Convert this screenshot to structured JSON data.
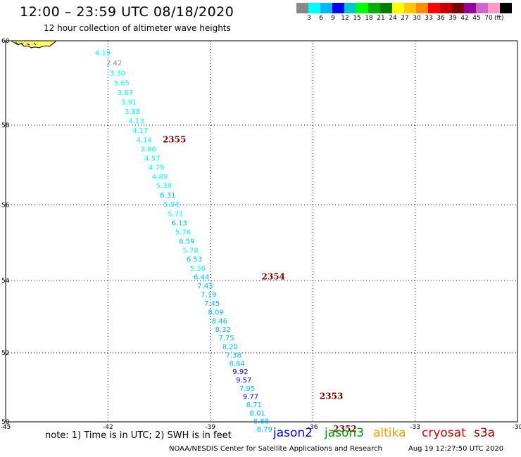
{
  "header": {
    "title": "12:00 – 23:59 UTC 08/18/2020",
    "subtitle": "12 hour collection of altimeter wave heights"
  },
  "scale": {
    "colors": [
      "#888888",
      "#00ffff",
      "#00b7ff",
      "#0000ff",
      "#00c8c8",
      "#00ff00",
      "#00b200",
      "#007d00",
      "#ffff00",
      "#ffc800",
      "#ff8c00",
      "#ff0000",
      "#c80000",
      "#7d0000",
      "#990099",
      "#cc66cc",
      "#ff99cc",
      "#000000"
    ],
    "labels": [
      "3",
      "6",
      "9",
      "12",
      "15",
      "18",
      "21",
      "24",
      "27",
      "30",
      "33",
      "36",
      "39",
      "42",
      "45",
      "70"
    ],
    "unit": "(ft)"
  },
  "map": {
    "lon_ticks": [
      "-45",
      "-42",
      "-39",
      "-36",
      "-33",
      "-30"
    ],
    "lat_ticks": [
      "60",
      "58",
      "56",
      "54",
      "52",
      "50"
    ]
  },
  "chart_data": {
    "type": "scatter",
    "xlabel": "",
    "ylabel": "",
    "xlim": [
      -45,
      -30
    ],
    "ylim": [
      50,
      60
    ],
    "grid": true,
    "points": [
      {
        "lon": -42.38,
        "lat": 59.67,
        "label": "4.19"
      },
      {
        "lon": -42.05,
        "lat": 59.43,
        "label": "2.42"
      },
      {
        "lon": -41.95,
        "lat": 59.19,
        "label": "3.30"
      },
      {
        "lon": -41.83,
        "lat": 58.96,
        "label": "3.65"
      },
      {
        "lon": -41.72,
        "lat": 58.73,
        "label": "3.67"
      },
      {
        "lon": -41.61,
        "lat": 58.5,
        "label": "3.91"
      },
      {
        "lon": -41.51,
        "lat": 58.27,
        "label": "3.88"
      },
      {
        "lon": -41.4,
        "lat": 58.04,
        "label": "4.13"
      },
      {
        "lon": -41.28,
        "lat": 57.81,
        "label": "4.17"
      },
      {
        "lon": -41.17,
        "lat": 57.58,
        "label": "4.14"
      },
      {
        "lon": -41.05,
        "lat": 57.35,
        "label": "3.98"
      },
      {
        "lon": -40.93,
        "lat": 57.12,
        "label": "4.57"
      },
      {
        "lon": -40.81,
        "lat": 56.89,
        "label": "4.79"
      },
      {
        "lon": -40.71,
        "lat": 56.66,
        "label": "4.89"
      },
      {
        "lon": -40.59,
        "lat": 56.43,
        "label": "5.38"
      },
      {
        "lon": -40.48,
        "lat": 56.19,
        "label": "6.31"
      },
      {
        "lon": -40.37,
        "lat": 55.95,
        "label": "5.94"
      },
      {
        "lon": -40.25,
        "lat": 55.71,
        "label": "5.71"
      },
      {
        "lon": -40.14,
        "lat": 55.47,
        "label": "6.13"
      },
      {
        "lon": -40.03,
        "lat": 55.23,
        "label": "5.76"
      },
      {
        "lon": -39.92,
        "lat": 54.99,
        "label": "6.59"
      },
      {
        "lon": -39.81,
        "lat": 54.75,
        "label": "5.78"
      },
      {
        "lon": -39.7,
        "lat": 54.51,
        "label": "6.53"
      },
      {
        "lon": -39.6,
        "lat": 54.27,
        "label": "5.36"
      },
      {
        "lon": -39.49,
        "lat": 54.03,
        "label": "6.44"
      },
      {
        "lon": -39.38,
        "lat": 53.79,
        "label": "7.43"
      },
      {
        "lon": -39.28,
        "lat": 53.55,
        "label": "7.19"
      },
      {
        "lon": -39.18,
        "lat": 53.31,
        "label": "7.45"
      },
      {
        "lon": -39.07,
        "lat": 53.07,
        "label": "8.09"
      },
      {
        "lon": -38.96,
        "lat": 52.83,
        "label": "8.46"
      },
      {
        "lon": -38.86,
        "lat": 52.59,
        "label": "8.32"
      },
      {
        "lon": -38.76,
        "lat": 52.35,
        "label": "7.75"
      },
      {
        "lon": -38.65,
        "lat": 52.11,
        "label": "8.20"
      },
      {
        "lon": -38.55,
        "lat": 51.87,
        "label": "7.38"
      },
      {
        "lon": -38.45,
        "lat": 51.63,
        "label": "8.84"
      },
      {
        "lon": -38.35,
        "lat": 51.39,
        "label": "9.92"
      },
      {
        "lon": -38.25,
        "lat": 51.15,
        "label": "9.57"
      },
      {
        "lon": -38.15,
        "lat": 50.91,
        "label": "7.95"
      },
      {
        "lon": -38.05,
        "lat": 50.67,
        "label": "9.77"
      },
      {
        "lon": -37.95,
        "lat": 50.43,
        "label": "8.71"
      },
      {
        "lon": -37.85,
        "lat": 50.19,
        "label": "8.01"
      },
      {
        "lon": -37.74,
        "lat": 49.95,
        "label": "8.88"
      },
      {
        "lon": -37.64,
        "lat": 49.71,
        "label": "8.79"
      }
    ],
    "pass_labels": [
      {
        "lon": -40.4,
        "lat": 57.58,
        "label": "2355"
      },
      {
        "lon": -37.5,
        "lat": 54.03,
        "label": "2354"
      },
      {
        "lon": -35.8,
        "lat": 50.67,
        "label": "2353"
      },
      {
        "lon": -35.4,
        "lat": 49.71,
        "label": "2352"
      }
    ]
  },
  "footer": {
    "note": "note: 1) Time is in UTC; 2) SWH is in feet",
    "satellites": [
      {
        "name": "jason2",
        "color": "#0000cc"
      },
      {
        "name": "jason3",
        "color": "#009900"
      },
      {
        "name": "altika",
        "color": "#ff9900"
      },
      {
        "name": "cryosat",
        "color": "#cc0000"
      },
      {
        "name": "s3a",
        "color": "#990000"
      }
    ],
    "credit": "NOAA/NESDIS Center for Satellite Applications and Research",
    "timestamp": "Aug 19 12:27:50 UTC 2020"
  }
}
